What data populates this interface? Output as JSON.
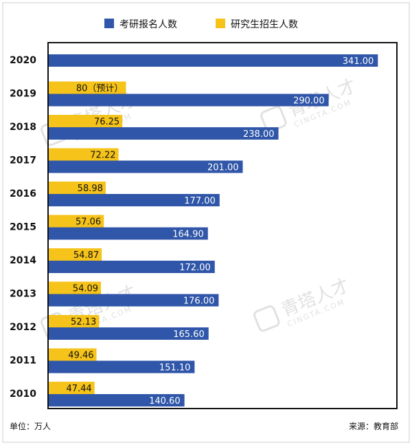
{
  "chart_data": {
    "type": "bar",
    "orientation": "horizontal",
    "categories": [
      "2020",
      "2019",
      "2018",
      "2017",
      "2016",
      "2015",
      "2014",
      "2013",
      "2012",
      "2011",
      "2010"
    ],
    "series": [
      {
        "name": "研究生招生人数",
        "color": "#f5c319",
        "values": [
          null,
          80,
          76.25,
          72.22,
          58.98,
          57.06,
          54.87,
          54.09,
          52.13,
          49.46,
          47.44
        ],
        "labels": [
          "",
          "80（预计）",
          "76.25",
          "72.22",
          "58.98",
          "57.06",
          "54.87",
          "54.09",
          "52.13",
          "49.46",
          "47.44"
        ]
      },
      {
        "name": "考研报名人数",
        "color": "#2f56a8",
        "values": [
          341,
          290,
          238,
          201,
          177,
          164.9,
          172,
          176,
          165.6,
          151.1,
          140.6
        ],
        "labels": [
          "341.00",
          "290.00",
          "238.00",
          "201.00",
          "177.00",
          "164.90",
          "172.00",
          "176.00",
          "165.60",
          "151.10",
          "140.60"
        ]
      }
    ],
    "legend": [
      "考研报名人数",
      "研究生招生人数"
    ],
    "legend_position": "top",
    "xlim": [
      0,
      360
    ],
    "grid": false
  },
  "footer": {
    "unit": "单位：万人",
    "source": "来源：教育部"
  },
  "watermark": {
    "text": "青塔人才",
    "sub": "CINGTA.COM"
  }
}
